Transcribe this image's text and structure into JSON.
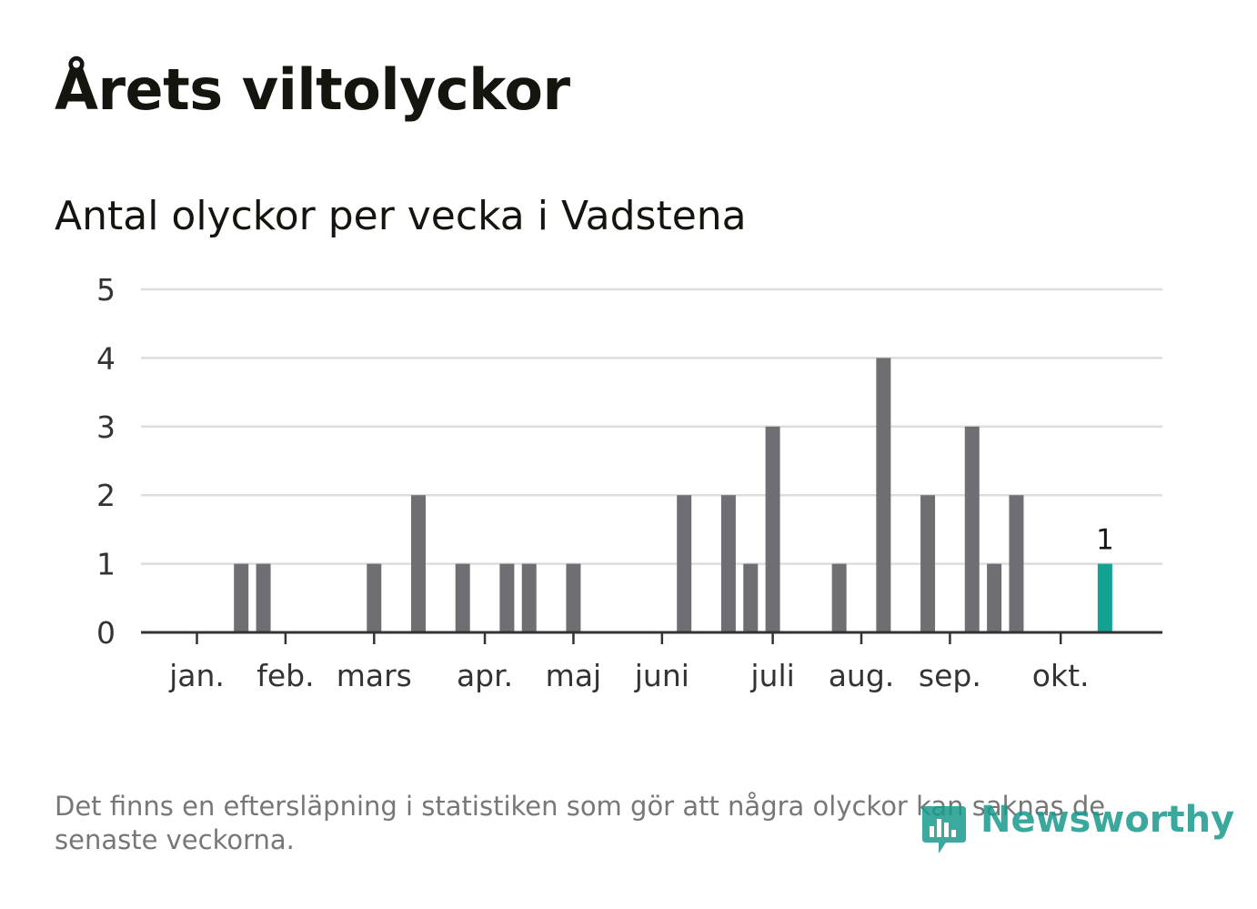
{
  "title": "Årets viltolyckor",
  "subtitle": "Antal olyckor per vecka i Vadstena",
  "footnote": "Det finns en eftersläpning i statistiken som gör att några olyckor kan saknas de senaste veckorna.",
  "logo": {
    "text": "Newsworthy",
    "color": "#1a9a8e"
  },
  "colors": {
    "bar": "#6f6e73",
    "highlight": "#10a394",
    "grid": "#dddddd",
    "axis": "#333333"
  },
  "chart_data": {
    "type": "bar",
    "title": "Antal olyckor per vecka i Vadstena",
    "xlabel": "",
    "ylabel": "",
    "ylim": [
      0,
      5
    ],
    "yticks": [
      "0",
      "1",
      "2",
      "3",
      "4",
      "5"
    ],
    "x_months": [
      "jan.",
      "feb.",
      "mars",
      "apr.",
      "maj",
      "juni",
      "juli",
      "aug.",
      "sep.",
      "okt."
    ],
    "month_start_weeks": [
      1,
      5,
      9,
      14,
      18,
      22,
      27,
      31,
      35,
      40
    ],
    "weeks": [
      1,
      2,
      3,
      4,
      5,
      6,
      7,
      8,
      9,
      10,
      11,
      12,
      13,
      14,
      15,
      16,
      17,
      18,
      19,
      20,
      21,
      22,
      23,
      24,
      25,
      26,
      27,
      28,
      29,
      30,
      31,
      32,
      33,
      34,
      35,
      36,
      37,
      38,
      39,
      40,
      41,
      42
    ],
    "values": [
      0,
      0,
      1,
      1,
      0,
      0,
      0,
      0,
      1,
      0,
      2,
      0,
      1,
      0,
      1,
      1,
      0,
      1,
      0,
      0,
      0,
      0,
      2,
      0,
      2,
      1,
      3,
      0,
      0,
      1,
      0,
      4,
      0,
      2,
      0,
      3,
      1,
      2,
      0,
      0,
      0,
      1
    ],
    "highlight_week": 42,
    "highlight_label": "1",
    "grid": true
  }
}
